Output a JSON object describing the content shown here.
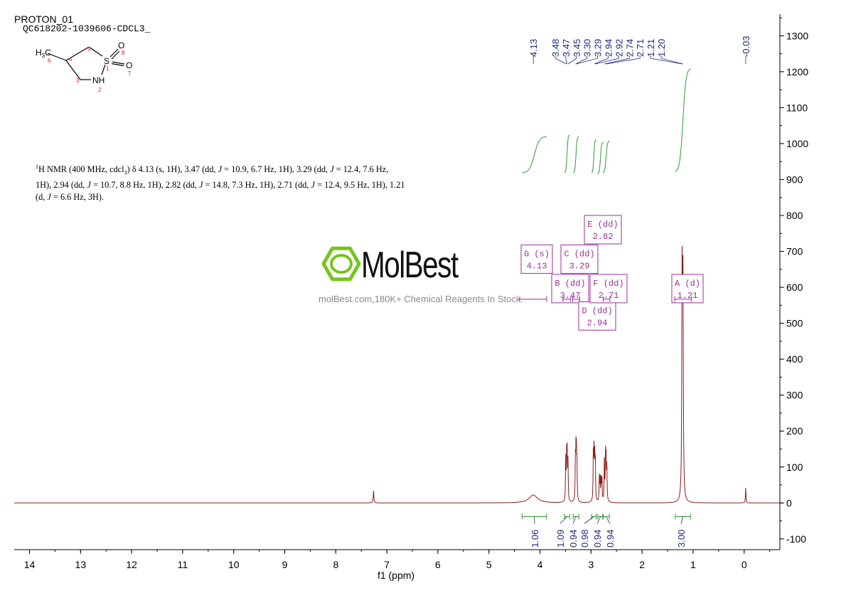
{
  "header": {
    "title": "PROTON_01",
    "subtitle": "QC618202-1039606-CDCL3_"
  },
  "nmr_text": {
    "sup": "1",
    "line1": "H NMR (400 MHz, cdcl",
    "sub3": "3",
    "rest1": ") δ 4.13 (s, 1H), 3.47 (dd, ",
    "J": "J",
    "line_parts": [
      " = 10.9, 6.7 Hz, 1H), 3.29 (dd, ",
      " = 12.4, 7.6 Hz,",
      "1H), 2.94 (dd, ",
      " = 10.7, 8.8 Hz, 1H), 2.82 (dd, ",
      " = 14.8, 7.3 Hz, 1H), 2.71 (dd, ",
      " = 12.4, 9.5 Hz, 1H), 1.21",
      "(d, ",
      " = 6.6 Hz, 3H)."
    ]
  },
  "molecule": {
    "atoms": [
      "H3C",
      "S",
      "O",
      "O",
      "NH"
    ],
    "h3c_main": "H",
    "h3c_sub": "3",
    "h3c_tail": "C",
    "s": "S",
    "o_top": "O",
    "o_right": "O",
    "nh": "NH",
    "numbers": [
      "1",
      "2",
      "3",
      "4",
      "5",
      "6",
      "7",
      "8"
    ]
  },
  "watermark": {
    "brand": "MolBest",
    "url": "molBest.com,180K+ Chemical Reagents In Stock."
  },
  "colors": {
    "spectrum": "#8b1a1a",
    "integral": "#2e9a2e",
    "peak_label": "#1c2a7a",
    "multiplet": "#9a2f9a",
    "axis": "#000000",
    "logo_green": "#77c41e",
    "atom_number": "#d02020"
  },
  "chart_data": {
    "type": "line",
    "xlabel": "f1 (ppm)",
    "ylabel": "",
    "x_axis_reversed": true,
    "xlim": [
      14.3,
      -0.7
    ],
    "ylim": [
      -130,
      1360
    ],
    "x_ticks": [
      14,
      13,
      12,
      11,
      10,
      9,
      8,
      7,
      6,
      5,
      4,
      3,
      2,
      1,
      0
    ],
    "y_ticks": [
      -100,
      0,
      100,
      200,
      300,
      400,
      500,
      600,
      700,
      800,
      900,
      1000,
      1100,
      1200,
      1300
    ],
    "grid": false,
    "peaks": [
      {
        "ppm": 7.26,
        "height": 32,
        "width": 0.008
      },
      {
        "ppm": 4.13,
        "height": 22,
        "width": 0.1
      },
      {
        "ppm": 3.495,
        "height": 115,
        "width": 0.006
      },
      {
        "ppm": 3.478,
        "height": 112,
        "width": 0.006
      },
      {
        "ppm": 3.468,
        "height": 118,
        "width": 0.006
      },
      {
        "ppm": 3.452,
        "height": 108,
        "width": 0.006
      },
      {
        "ppm": 3.306,
        "height": 108,
        "width": 0.006
      },
      {
        "ppm": 3.295,
        "height": 112,
        "width": 0.006
      },
      {
        "ppm": 3.287,
        "height": 104,
        "width": 0.006
      },
      {
        "ppm": 3.276,
        "height": 98,
        "width": 0.006
      },
      {
        "ppm": 2.955,
        "height": 122,
        "width": 0.006
      },
      {
        "ppm": 2.942,
        "height": 130,
        "width": 0.006
      },
      {
        "ppm": 2.928,
        "height": 112,
        "width": 0.006
      },
      {
        "ppm": 2.916,
        "height": 100,
        "width": 0.006
      },
      {
        "ppm": 2.836,
        "height": 68,
        "width": 0.006
      },
      {
        "ppm": 2.82,
        "height": 62,
        "width": 0.006
      },
      {
        "ppm": 2.8,
        "height": 58,
        "width": 0.006
      },
      {
        "ppm": 2.785,
        "height": 60,
        "width": 0.006
      },
      {
        "ppm": 2.738,
        "height": 112,
        "width": 0.006
      },
      {
        "ppm": 2.716,
        "height": 122,
        "width": 0.006
      },
      {
        "ppm": 2.705,
        "height": 104,
        "width": 0.006
      },
      {
        "ppm": 2.69,
        "height": 92,
        "width": 0.006
      },
      {
        "ppm": 1.2153,
        "height": 605,
        "width": 0.008
      },
      {
        "ppm": 1.1987,
        "height": 572,
        "width": 0.008
      },
      {
        "ppm": -0.03,
        "height": 42,
        "width": 0.006
      }
    ],
    "peak_labels": [
      "4.13",
      "3.48",
      "3.47",
      "3.45",
      "3.30",
      "3.29",
      "2.94",
      "2.92",
      "2.74",
      "2.71",
      "1.21",
      "1.20",
      "-0.03"
    ],
    "integrals": [
      {
        "start": 4.35,
        "end": 3.87,
        "value": "1.06",
        "curve_y": [
          918,
          1020
        ]
      },
      {
        "start": 3.52,
        "end": 3.42,
        "value": "1.09",
        "curve_y": [
          918,
          1025
        ]
      },
      {
        "start": 3.35,
        "end": 3.24,
        "value": "0.94",
        "curve_y": [
          918,
          1020
        ]
      },
      {
        "start": 2.99,
        "end": 2.9,
        "value": "0.98",
        "curve_y": [
          918,
          1012
        ]
      },
      {
        "start": 2.87,
        "end": 2.76,
        "value": "0.94",
        "curve_y": [
          915,
          1005
        ]
      },
      {
        "start": 2.77,
        "end": 2.64,
        "value": "0.94",
        "curve_y": [
          918,
          1008
        ]
      },
      {
        "start": 1.35,
        "end": 1.05,
        "value": "3.00",
        "curve_y": [
          920,
          1210
        ]
      }
    ],
    "multiplets": [
      {
        "label": "A (d)",
        "value": "1.21",
        "range": [
          1.36,
          1.03
        ]
      },
      {
        "label": "B (dd)",
        "value": "3.47",
        "range": [
          3.55,
          3.4
        ]
      },
      {
        "label": "C (dd)",
        "value": "3.29",
        "range": [
          3.36,
          3.22
        ]
      },
      {
        "label": "D (dd)",
        "value": "2.94",
        "range": [
          2.99,
          2.88
        ]
      },
      {
        "label": "E (dd)",
        "value": "2.82",
        "range": [
          2.86,
          2.76
        ]
      },
      {
        "label": "F (dd)",
        "value": "2.71",
        "range": [
          2.76,
          2.63
        ]
      },
      {
        "label": "G (s)",
        "value": "4.13",
        "range": [
          4.4,
          3.87
        ]
      }
    ]
  }
}
